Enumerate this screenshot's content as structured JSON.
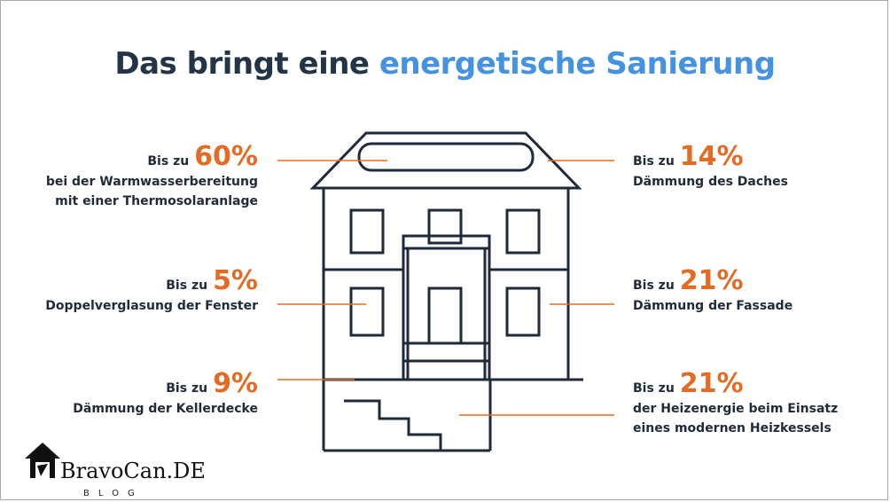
{
  "title": {
    "prefix": "Das bringt eine",
    "highlight": "energetische Sanierung"
  },
  "stats": {
    "hot_water": {
      "bis": "Bis zu",
      "percent": "60%",
      "line1": "bei der Warmwasserbereitung",
      "line2": "mit einer Thermosolaranlage"
    },
    "roof": {
      "bis": "Bis zu",
      "percent": "14%",
      "line1": "Dämmung des Daches"
    },
    "windows": {
      "bis": "Bis zu",
      "percent": "5%",
      "line1": "Doppelverglasung der Fenster"
    },
    "facade": {
      "bis": "Bis zu",
      "percent": "21%",
      "line1": "Dämmung der Fassade"
    },
    "basement": {
      "bis": "Bis zu",
      "percent": "9%",
      "line1": "Dämmung der Kellerdecke"
    },
    "heating": {
      "bis": "Bis zu",
      "percent": "21%",
      "line1": "der Heizenergie beim Einsatz",
      "line2": "eines modernen Heizkessels"
    }
  },
  "logo": {
    "brand": "BravoCan.DE",
    "sub": "BLOG"
  },
  "colors": {
    "dark": "#243447",
    "accent_blue": "#4592e0",
    "accent_orange": "#e36b24"
  }
}
